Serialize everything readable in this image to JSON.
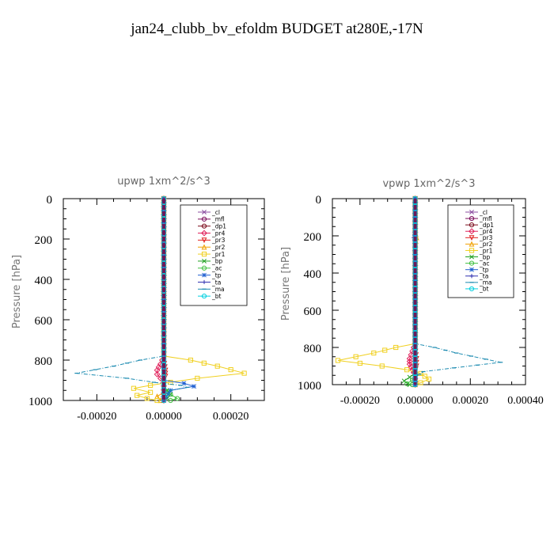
{
  "page": {
    "title": "jan24_clubb_bv_efoldm  BUDGET at280E,-17N"
  },
  "legend_items": [
    {
      "label": "_cl",
      "color": "#8b4fa0",
      "marker": "x"
    },
    {
      "label": "_mfl",
      "color": "#7a0a5a",
      "marker": "o"
    },
    {
      "label": "_dp1",
      "color": "#7a0a1a",
      "marker": "o"
    },
    {
      "label": "_pr4",
      "color": "#e0205a",
      "marker": "d"
    },
    {
      "label": "_pr3",
      "color": "#e02020",
      "marker": "v"
    },
    {
      "label": "_pr2",
      "color": "#f0a000",
      "marker": "^"
    },
    {
      "label": "_pr1",
      "color": "#f0d020",
      "marker": "s"
    },
    {
      "label": "_bp",
      "color": "#20a020",
      "marker": "x"
    },
    {
      "label": "_ac",
      "color": "#40c040",
      "marker": "o"
    },
    {
      "label": "_tp",
      "color": "#2060d0",
      "marker": "*"
    },
    {
      "label": "_ta",
      "color": "#3030b0",
      "marker": "+"
    },
    {
      "label": "_ma",
      "color": "#1a8ab0",
      "marker": "-"
    },
    {
      "label": "_bt",
      "color": "#00d0e0",
      "marker": "o"
    }
  ],
  "chart_data": [
    {
      "type": "line",
      "title": "upwp   1xm^2/s^3",
      "ylabel": "Pressure [hPa]",
      "xlabel": "",
      "xlim": [
        -0.0003,
        0.0003
      ],
      "ylim": [
        1000,
        0
      ],
      "xticks": [
        -0.0002,
        0.0,
        0.0002
      ],
      "xtick_labels": [
        "-0.00020",
        "0.00000",
        "0.00020"
      ],
      "yticks": [
        0,
        200,
        400,
        600,
        800,
        1000
      ],
      "ytick_labels": [
        "0",
        "200",
        "400",
        "600",
        "800",
        "1000"
      ],
      "legend_position": "top-right",
      "series": [
        {
          "name": "_cl",
          "points": [
            [
              0,
              0
            ],
            [
              0,
              1000
            ]
          ]
        },
        {
          "name": "_mfl",
          "points": [
            [
              0,
              0
            ],
            [
              0,
              1000
            ]
          ]
        },
        {
          "name": "_dp1",
          "points": [
            [
              0,
              0
            ],
            [
              0,
              1000
            ]
          ]
        },
        {
          "name": "_pr4",
          "points": [
            [
              0,
              0
            ],
            [
              0,
              780
            ],
            [
              -1e-05,
              820
            ],
            [
              -2e-05,
              850
            ],
            [
              -2e-05,
              870
            ],
            [
              -1e-05,
              890
            ],
            [
              0,
              910
            ],
            [
              0,
              1000
            ]
          ]
        },
        {
          "name": "_pr3",
          "points": [
            [
              0,
              0
            ],
            [
              0,
              800
            ],
            [
              5e-06,
              850
            ],
            [
              5e-06,
              880
            ],
            [
              0,
              900
            ],
            [
              0,
              1000
            ]
          ]
        },
        {
          "name": "_pr2",
          "points": [
            [
              0,
              0
            ],
            [
              0,
              960
            ],
            [
              -2e-05,
              980
            ],
            [
              -1e-05,
              1000
            ]
          ]
        },
        {
          "name": "_pr1",
          "points": [
            [
              0,
              0
            ],
            [
              0,
              780
            ],
            [
              8e-05,
              800
            ],
            [
              0.00016,
              830
            ],
            [
              0.00024,
              865
            ],
            [
              0.0001,
              890
            ],
            [
              2e-05,
              910
            ],
            [
              -4e-05,
              925
            ],
            [
              -9e-05,
              940
            ],
            [
              -4e-05,
              960
            ],
            [
              -8e-05,
              975
            ],
            [
              -5e-05,
              990
            ],
            [
              -2e-05,
              1000
            ]
          ]
        },
        {
          "name": "_bp",
          "points": [
            [
              0,
              0
            ],
            [
              0,
              930
            ],
            [
              1e-05,
              950
            ],
            [
              2e-05,
              970
            ],
            [
              1e-05,
              990
            ],
            [
              0,
              1000
            ]
          ]
        },
        {
          "name": "_ac",
          "points": [
            [
              0,
              0
            ],
            [
              0,
              940
            ],
            [
              2e-05,
              970
            ],
            [
              4e-05,
              990
            ],
            [
              2e-05,
              1000
            ]
          ]
        },
        {
          "name": "_tp",
          "points": [
            [
              0,
              0
            ],
            [
              0,
              900
            ],
            [
              6e-05,
              915
            ],
            [
              9e-05,
              930
            ],
            [
              2e-05,
              950
            ],
            [
              0,
              1000
            ]
          ]
        },
        {
          "name": "_ta",
          "points": [
            [
              0,
              0
            ],
            [
              0,
              1000
            ]
          ]
        },
        {
          "name": "_ma",
          "points": [
            [
              0,
              0
            ],
            [
              0,
              780
            ],
            [
              -7e-05,
              800
            ],
            [
              -0.00015,
              830
            ],
            [
              -0.00026,
              865
            ],
            [
              -0.00011,
              890
            ],
            [
              -3e-05,
              910
            ],
            [
              5e-05,
              925
            ],
            [
              7e-05,
              935
            ],
            [
              2e-05,
              950
            ],
            [
              0,
              1000
            ]
          ]
        },
        {
          "name": "_bt",
          "points": [
            [
              0,
              0
            ],
            [
              0,
              1000
            ]
          ]
        }
      ]
    },
    {
      "type": "line",
      "title": "vpwp   1xm^2/s^3",
      "ylabel": "Pressure [hPa]",
      "xlabel": "",
      "xlim": [
        -0.0003,
        0.0004
      ],
      "ylim": [
        1000,
        0
      ],
      "xticks": [
        -0.0002,
        0.0,
        0.0002,
        0.0004
      ],
      "xtick_labels": [
        "-0.00020",
        "0.00000",
        "0.00020",
        "0.00040"
      ],
      "yticks": [
        0,
        200,
        400,
        600,
        800,
        1000
      ],
      "ytick_labels": [
        "0",
        "200",
        "400",
        "600",
        "800",
        "1000"
      ],
      "legend_position": "top-right",
      "series": [
        {
          "name": "_cl",
          "points": [
            [
              0,
              0
            ],
            [
              0,
              1000
            ]
          ]
        },
        {
          "name": "_mfl",
          "points": [
            [
              0,
              0
            ],
            [
              0,
              1000
            ]
          ]
        },
        {
          "name": "_dp1",
          "points": [
            [
              0,
              0
            ],
            [
              0,
              1000
            ]
          ]
        },
        {
          "name": "_pr4",
          "points": [
            [
              0,
              0
            ],
            [
              0,
              780
            ],
            [
              -1e-05,
              820
            ],
            [
              -2e-05,
              860
            ],
            [
              -2e-05,
              890
            ],
            [
              -1e-05,
              920
            ],
            [
              0,
              950
            ],
            [
              0,
              1000
            ]
          ]
        },
        {
          "name": "_pr3",
          "points": [
            [
              0,
              0
            ],
            [
              0,
              800
            ],
            [
              5e-06,
              860
            ],
            [
              5e-06,
              900
            ],
            [
              0,
              930
            ],
            [
              0,
              1000
            ]
          ]
        },
        {
          "name": "_pr2",
          "points": [
            [
              0,
              0
            ],
            [
              0,
              180
            ],
            [
              5e-06,
              210
            ],
            [
              0,
              250
            ],
            [
              0,
              1000
            ]
          ]
        },
        {
          "name": "_pr1",
          "points": [
            [
              0,
              0
            ],
            [
              0,
              780
            ],
            [
              -7e-05,
              800
            ],
            [
              -0.00015,
              830
            ],
            [
              -0.00028,
              870
            ],
            [
              -0.00012,
              900
            ],
            [
              -3e-05,
              920
            ],
            [
              2e-05,
              940
            ],
            [
              5e-05,
              970
            ],
            [
              2e-05,
              990
            ],
            [
              0,
              1000
            ]
          ]
        },
        {
          "name": "_bp",
          "points": [
            [
              0,
              0
            ],
            [
              0,
              940
            ],
            [
              -2e-05,
              960
            ],
            [
              -4e-05,
              980
            ],
            [
              -2e-05,
              1000
            ]
          ]
        },
        {
          "name": "_ac",
          "points": [
            [
              0,
              0
            ],
            [
              0,
              950
            ],
            [
              -1e-05,
              975
            ],
            [
              -3e-05,
              995
            ],
            [
              -1e-05,
              1000
            ]
          ]
        },
        {
          "name": "_tp",
          "points": [
            [
              0,
              0
            ],
            [
              0,
              1000
            ]
          ]
        },
        {
          "name": "_ta",
          "points": [
            [
              0,
              0
            ],
            [
              0,
              180
            ],
            [
              -5e-06,
              210
            ],
            [
              0,
              240
            ],
            [
              0,
              1000
            ]
          ]
        },
        {
          "name": "_ma",
          "points": [
            [
              0,
              0
            ],
            [
              0,
              780
            ],
            [
              7e-05,
              800
            ],
            [
              0.00015,
              830
            ],
            [
              0.00031,
              880
            ],
            [
              0.00014,
              910
            ],
            [
              3e-05,
              930
            ],
            [
              0,
              960
            ],
            [
              0,
              1000
            ]
          ]
        },
        {
          "name": "_bt",
          "points": [
            [
              0,
              0
            ],
            [
              0,
              1000
            ]
          ]
        }
      ]
    }
  ]
}
